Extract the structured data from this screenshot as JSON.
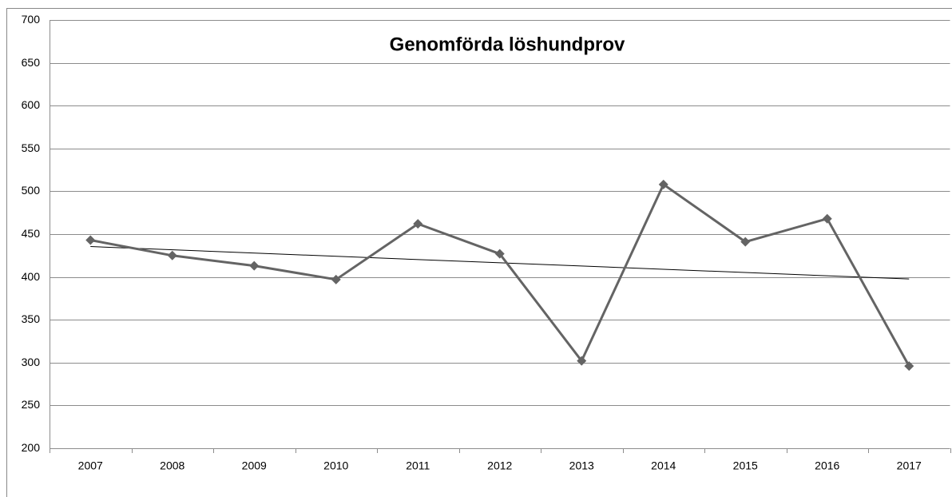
{
  "chart_data": {
    "type": "line",
    "title": "Genomförda löshundprov",
    "categories": [
      "2007",
      "2008",
      "2009",
      "2010",
      "2011",
      "2012",
      "2013",
      "2014",
      "2015",
      "2016",
      "2017"
    ],
    "values": [
      443,
      425,
      413,
      397,
      462,
      427,
      302,
      508,
      441,
      468,
      296
    ],
    "color": "#646464",
    "ylim": [
      200,
      700
    ],
    "yticks": [
      200,
      250,
      300,
      350,
      400,
      450,
      500,
      550,
      600,
      650,
      700
    ],
    "grid": true,
    "marker": "diamond",
    "trendline": true
  }
}
